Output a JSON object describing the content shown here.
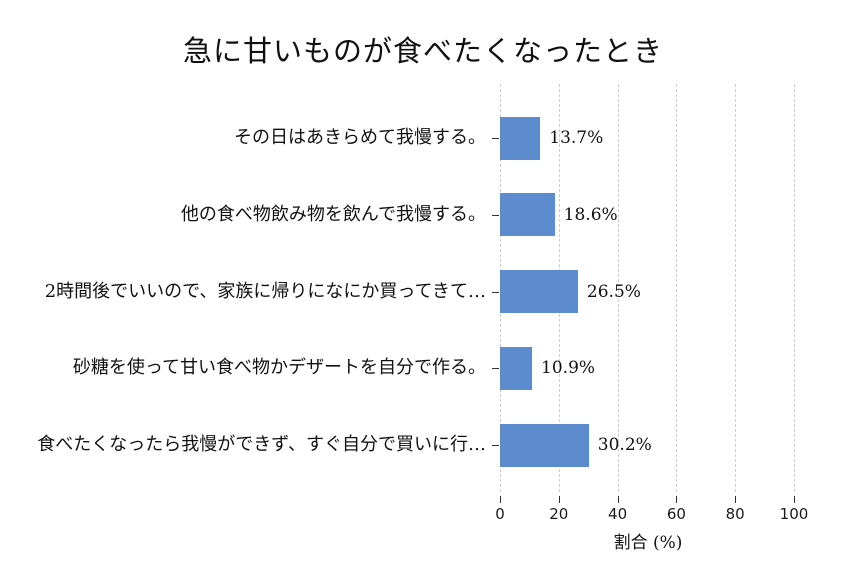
{
  "title": "急に甘いものが食べたくなったとき",
  "chart_data": {
    "type": "bar",
    "orientation": "horizontal",
    "title": "急に甘いものが食べたくなったとき",
    "categories": [
      "その日はあきらめて我慢する。",
      "他の食べ物飲み物を飲んで我慢する。",
      "2時間後でいいので、家族に帰りになにか買ってきて…",
      "砂糖を使って甘い食べ物かデザートを自分で作る。",
      "食べたくなったら我慢ができず、すぐ自分で買いに行…"
    ],
    "values": [
      13.7,
      18.6,
      26.5,
      10.9,
      30.2
    ],
    "value_labels": [
      "13.7%",
      "18.6%",
      "26.5%",
      "10.9%",
      "30.2%"
    ],
    "xlabel": "割合 (%)",
    "xticks": [
      0,
      20,
      40,
      60,
      80,
      100
    ],
    "xlim": [
      0,
      100
    ],
    "grid": "vertical-dashed",
    "legend": "none",
    "bar_color": "#5c8ccd",
    "grid_color": "#cccccc"
  }
}
